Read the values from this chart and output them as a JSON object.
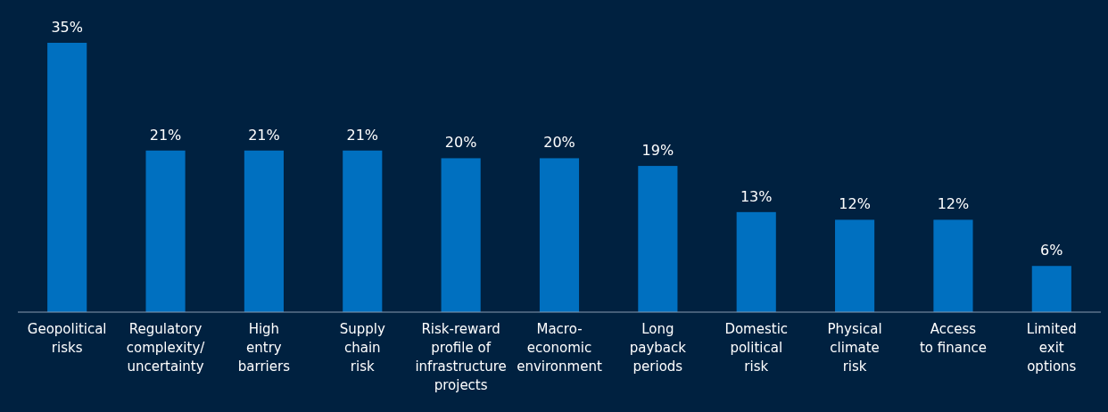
{
  "chart_data": {
    "type": "bar",
    "categories": [
      "Geopolitical\nrisks",
      "Regulatory\ncomplexity/\nuncertainty",
      "High\nentry\nbarriers",
      "Supply\nchain\nrisk",
      "Risk-reward\nprofile of\ninfrastructure\nprojects",
      "Macro-\neconomic\nenvironment",
      "Long\npayback\nperiods",
      "Domestic\npolitical\nrisk",
      "Physical\nclimate\nrisk",
      "Access\nto finance",
      "Limited\nexit\noptions"
    ],
    "values": [
      35,
      21,
      21,
      21,
      20,
      20,
      19,
      13,
      12,
      12,
      6
    ],
    "value_labels": [
      "35%",
      "21%",
      "21%",
      "21%",
      "20%",
      "20%",
      "19%",
      "13%",
      "12%",
      "12%",
      "6%"
    ],
    "color": "#0070c0"
  }
}
